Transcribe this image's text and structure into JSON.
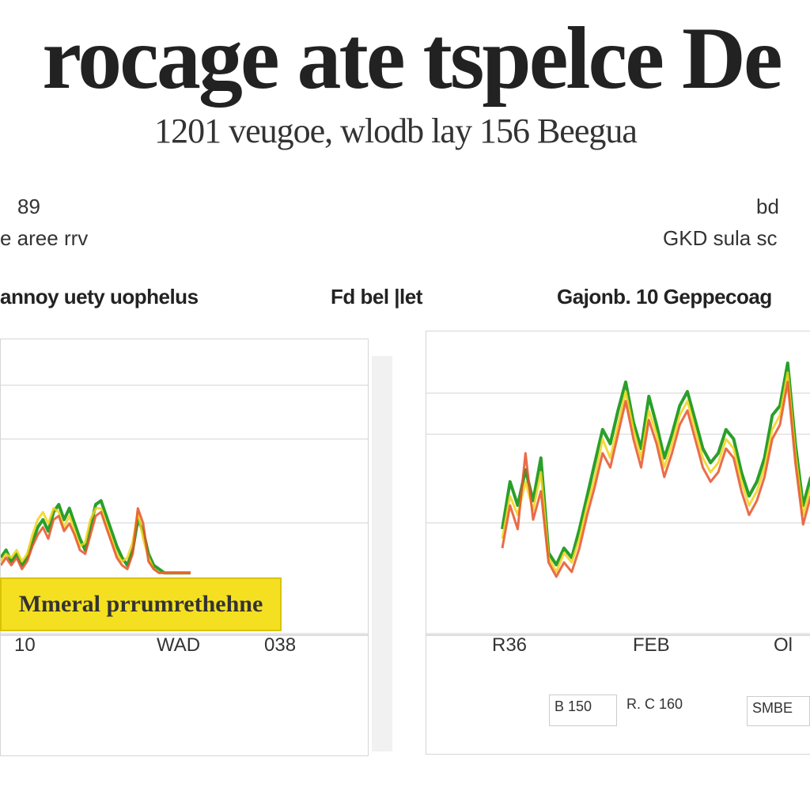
{
  "title": "rocage ate tspelce De",
  "subtitle": "1201 veugoe, wlodb lay 156 Beegua",
  "left_panel": {
    "top_value": "89",
    "top_label": "e aree rrv",
    "caption": "annoy uety uophelus",
    "callout": "Mmeral prrumrethehne",
    "ticks": [
      "10",
      "WAD",
      "038"
    ]
  },
  "middle_caption": "Fd bel |let",
  "right_panel": {
    "top_value": "bd",
    "top_label": "GKD sula sc",
    "caption": "Gajonb. 10 Geppecoag",
    "ticks": [
      "R36",
      "FEB",
      "Ol"
    ],
    "legend": [
      "B 150",
      "R. C 160",
      "SMBE"
    ]
  },
  "colors": {
    "green": "#1f9a1f",
    "yellow": "#f2d21a",
    "red": "#e5532a",
    "orange": "#f08a1c",
    "grid": "#e2e2e2"
  },
  "chart_data": [
    {
      "type": "line",
      "x": [
        0,
        1,
        2,
        3,
        4,
        5,
        6,
        7,
        8,
        9,
        10,
        11,
        12,
        13,
        14,
        15,
        16,
        17,
        18,
        19,
        20,
        21,
        22,
        23,
        24,
        25,
        26,
        27,
        28,
        29,
        30,
        31,
        32,
        33,
        34,
        35,
        36
      ],
      "series": [
        {
          "values": [
            10,
            14,
            8,
            12,
            6,
            10,
            18,
            26,
            30,
            24,
            34,
            38,
            30,
            36,
            28,
            20,
            14,
            26,
            38,
            40,
            32,
            24,
            16,
            10,
            6,
            14,
            30,
            24,
            12,
            6,
            4,
            2,
            2,
            2,
            2,
            2,
            2
          ]
        },
        {
          "values": [
            8,
            12,
            10,
            14,
            8,
            12,
            22,
            30,
            34,
            28,
            36,
            34,
            26,
            32,
            24,
            16,
            18,
            30,
            36,
            36,
            28,
            20,
            12,
            8,
            10,
            18,
            34,
            20,
            10,
            4,
            2,
            2,
            2,
            2,
            2,
            2,
            2
          ]
        },
        {
          "values": [
            6,
            10,
            6,
            10,
            4,
            8,
            16,
            22,
            26,
            20,
            30,
            32,
            24,
            28,
            22,
            14,
            12,
            22,
            32,
            34,
            26,
            18,
            10,
            6,
            4,
            12,
            36,
            28,
            8,
            4,
            2,
            2,
            2,
            2,
            2,
            2,
            2
          ]
        }
      ],
      "ylim": [
        0,
        100
      ]
    },
    {
      "type": "line",
      "x": [
        0,
        1,
        2,
        3,
        4,
        5,
        6,
        7,
        8,
        9,
        10,
        11,
        12,
        13,
        14,
        15,
        16,
        17,
        18,
        19,
        20,
        21,
        22,
        23,
        24,
        25,
        26,
        27,
        28,
        29,
        30,
        31,
        32,
        33,
        34,
        35,
        36,
        37,
        38,
        39,
        40
      ],
      "series": [
        {
          "values": [
            30,
            50,
            40,
            55,
            42,
            60,
            20,
            15,
            22,
            18,
            30,
            44,
            58,
            72,
            66,
            80,
            92,
            75,
            64,
            86,
            74,
            60,
            70,
            82,
            88,
            76,
            64,
            58,
            62,
            72,
            68,
            54,
            44,
            50,
            60,
            78,
            82,
            100,
            66,
            40,
            52
          ]
        },
        {
          "values": [
            26,
            44,
            36,
            50,
            38,
            54,
            18,
            12,
            20,
            16,
            26,
            40,
            52,
            68,
            60,
            74,
            88,
            72,
            60,
            80,
            70,
            56,
            66,
            78,
            84,
            72,
            60,
            54,
            58,
            68,
            64,
            50,
            40,
            46,
            56,
            72,
            78,
            96,
            62,
            36,
            48
          ]
        },
        {
          "values": [
            22,
            40,
            30,
            62,
            34,
            46,
            16,
            10,
            16,
            12,
            22,
            36,
            48,
            62,
            56,
            70,
            84,
            68,
            56,
            76,
            66,
            52,
            62,
            74,
            80,
            68,
            56,
            50,
            54,
            64,
            60,
            46,
            36,
            42,
            52,
            68,
            74,
            92,
            58,
            32,
            44
          ]
        }
      ],
      "ylim": [
        0,
        110
      ]
    }
  ]
}
